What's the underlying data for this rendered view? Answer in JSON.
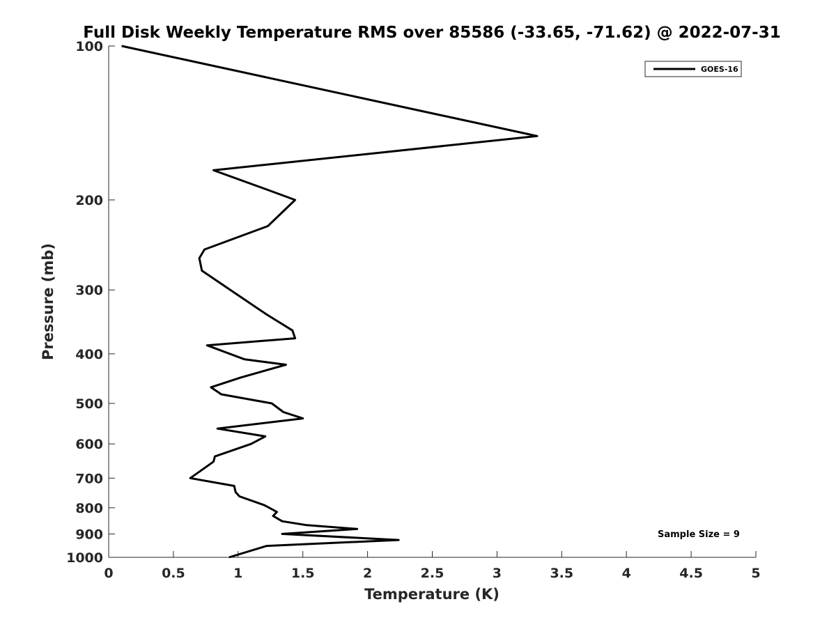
{
  "chart_data": {
    "type": "line",
    "title": "Full Disk Weekly Temperature RMS over 85586 (-33.65, -71.62) @ 2022-07-31",
    "xlabel": "Temperature (K)",
    "ylabel": "Pressure (mb)",
    "xlim": [
      0,
      5
    ],
    "ylim": [
      100,
      1000
    ],
    "yscale": "log",
    "yreversed": true,
    "grid": false,
    "legend_position": "top-right",
    "x_ticks": [
      "0",
      "0.5",
      "1",
      "1.5",
      "2",
      "2.5",
      "3",
      "3.5",
      "4",
      "4.5",
      "5"
    ],
    "x_tick_values": [
      0,
      0.5,
      1,
      1.5,
      2,
      2.5,
      3,
      3.5,
      4,
      4.5,
      5
    ],
    "y_ticks": [
      "100",
      "200",
      "300",
      "400",
      "500",
      "600",
      "700",
      "800",
      "900",
      "1000"
    ],
    "y_tick_values": [
      100,
      200,
      300,
      400,
      500,
      600,
      700,
      800,
      900,
      1000
    ],
    "annotation": "Sample Size = 9",
    "series": [
      {
        "name": "GOES-16",
        "color": "#000000",
        "points": [
          [
            0.1,
            100
          ],
          [
            3.31,
            150
          ],
          [
            0.81,
            175
          ],
          [
            1.2,
            190
          ],
          [
            1.44,
            200
          ],
          [
            1.23,
            225
          ],
          [
            0.74,
            250
          ],
          [
            0.7,
            260
          ],
          [
            0.72,
            275
          ],
          [
            0.94,
            300
          ],
          [
            1.22,
            335
          ],
          [
            1.42,
            360
          ],
          [
            1.44,
            373
          ],
          [
            0.76,
            385
          ],
          [
            1.05,
            410
          ],
          [
            1.37,
            420
          ],
          [
            1.02,
            445
          ],
          [
            0.79,
            465
          ],
          [
            0.87,
            480
          ],
          [
            1.26,
            500
          ],
          [
            1.35,
            520
          ],
          [
            1.5,
            535
          ],
          [
            0.84,
            560
          ],
          [
            1.21,
            580
          ],
          [
            1.1,
            600
          ],
          [
            0.82,
            635
          ],
          [
            0.81,
            650
          ],
          [
            0.63,
            700
          ],
          [
            0.97,
            725
          ],
          [
            0.98,
            745
          ],
          [
            1.01,
            760
          ],
          [
            1.2,
            790
          ],
          [
            1.3,
            815
          ],
          [
            1.27,
            830
          ],
          [
            1.34,
            850
          ],
          [
            1.53,
            865
          ],
          [
            1.92,
            880
          ],
          [
            1.34,
            900
          ],
          [
            2.24,
            925
          ],
          [
            1.22,
            950
          ],
          [
            0.93,
            1000
          ]
        ]
      }
    ]
  }
}
